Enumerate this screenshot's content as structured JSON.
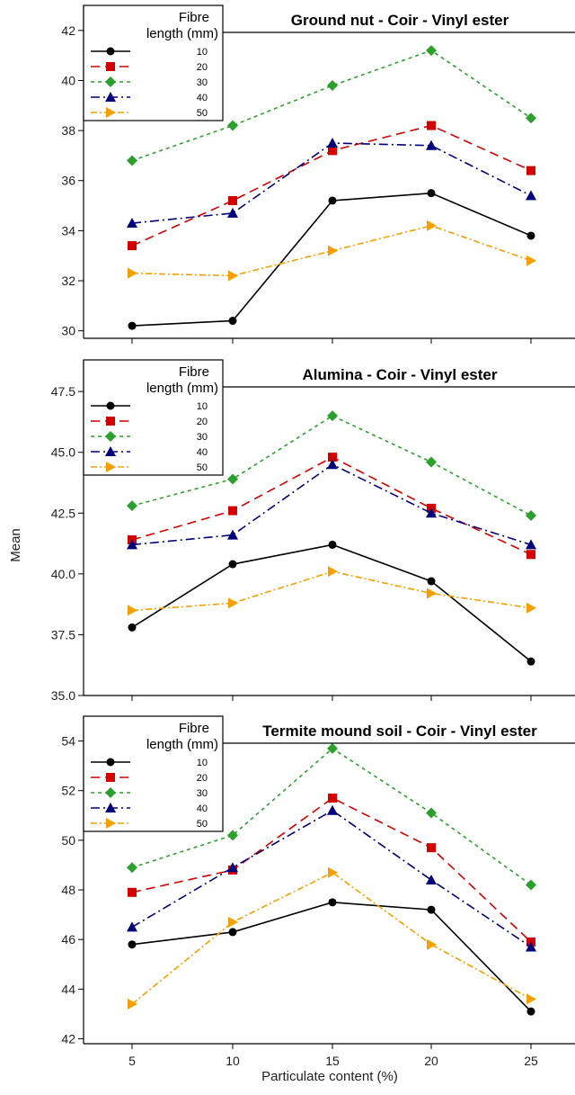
{
  "colors": {
    "10": "#000000",
    "20": "#d40000",
    "30": "#2ca02c",
    "40": "#00007a",
    "50": "#f5a000"
  },
  "figure": {
    "ylabel": "Mean",
    "xlabel": "Particulate content (%)",
    "x_tick_labels": [
      "5",
      "10",
      "15",
      "20",
      "25"
    ]
  },
  "legend": {
    "title_line1": "Fibre",
    "title_line2": "length (mm)",
    "entries": [
      "10",
      "20",
      "30",
      "40",
      "50"
    ]
  },
  "chart_data": [
    {
      "type": "line",
      "title": "Ground nut - Coir - Vinyl ester",
      "x": [
        5,
        10,
        15,
        20,
        25
      ],
      "ylim": [
        29.7,
        43
      ],
      "yticks": [
        30,
        32,
        34,
        36,
        38,
        40,
        42
      ],
      "ytick_labels": [
        "30",
        "32",
        "34",
        "36",
        "38",
        "40",
        "42"
      ],
      "series": [
        {
          "name": "10",
          "values": [
            30.2,
            30.4,
            35.2,
            35.5,
            33.8
          ]
        },
        {
          "name": "20",
          "values": [
            33.4,
            35.2,
            37.2,
            38.2,
            36.4
          ]
        },
        {
          "name": "30",
          "values": [
            36.8,
            38.2,
            39.8,
            41.2,
            38.5
          ]
        },
        {
          "name": "40",
          "values": [
            34.3,
            34.7,
            37.5,
            37.4,
            35.4
          ]
        },
        {
          "name": "50",
          "values": [
            32.3,
            32.2,
            33.2,
            34.2,
            32.8
          ]
        }
      ]
    },
    {
      "type": "line",
      "title": "Alumina - Coir - Vinyl ester",
      "x": [
        5,
        10,
        15,
        20,
        25
      ],
      "ylim": [
        35,
        48.8
      ],
      "yticks": [
        35.0,
        37.5,
        40.0,
        42.5,
        45.0,
        47.5
      ],
      "ytick_labels": [
        "35.0",
        "37.5",
        "40.0",
        "42.5",
        "45.0",
        "47.5"
      ],
      "series": [
        {
          "name": "10",
          "values": [
            37.8,
            40.4,
            41.2,
            39.7,
            36.4
          ]
        },
        {
          "name": "20",
          "values": [
            41.4,
            42.6,
            44.8,
            42.7,
            40.8
          ]
        },
        {
          "name": "30",
          "values": [
            42.8,
            43.9,
            46.5,
            44.6,
            42.4
          ]
        },
        {
          "name": "40",
          "values": [
            41.2,
            41.6,
            44.5,
            42.5,
            41.2
          ]
        },
        {
          "name": "50",
          "values": [
            38.5,
            38.8,
            40.1,
            39.2,
            38.6
          ]
        }
      ]
    },
    {
      "type": "line",
      "title": "Termite mound soil - Coir - Vinyl ester",
      "x": [
        5,
        10,
        15,
        20,
        25
      ],
      "ylim": [
        41.8,
        55
      ],
      "yticks": [
        42,
        44,
        46,
        48,
        50,
        52,
        54
      ],
      "ytick_labels": [
        "42",
        "44",
        "46",
        "48",
        "50",
        "52",
        "54"
      ],
      "series": [
        {
          "name": "10",
          "values": [
            45.8,
            46.3,
            47.5,
            47.2,
            43.1
          ]
        },
        {
          "name": "20",
          "values": [
            47.9,
            48.8,
            51.7,
            49.7,
            45.9
          ]
        },
        {
          "name": "30",
          "values": [
            48.9,
            50.2,
            53.7,
            51.1,
            48.2
          ]
        },
        {
          "name": "40",
          "values": [
            46.5,
            48.9,
            51.2,
            48.4,
            45.7
          ]
        },
        {
          "name": "50",
          "values": [
            43.4,
            46.7,
            48.7,
            45.8,
            43.6
          ]
        }
      ]
    }
  ]
}
